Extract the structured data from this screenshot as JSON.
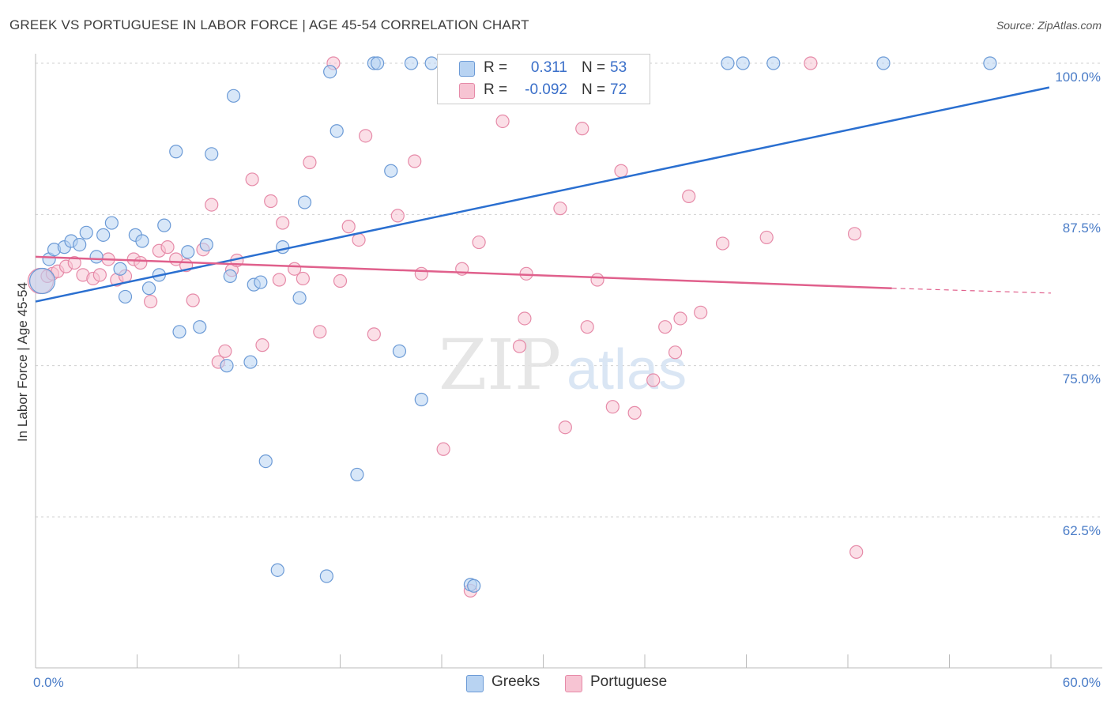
{
  "header": {
    "title": "GREEK VS PORTUGUESE IN LABOR FORCE | AGE 45-54 CORRELATION CHART",
    "source": "Source: ZipAtlas.com"
  },
  "legend": {
    "rows": [
      {
        "r_label": "R =",
        "r_value": "0.311",
        "n_label": "N =",
        "n_value": "53"
      },
      {
        "r_label": "R =",
        "r_value": "-0.092",
        "n_label": "N =",
        "n_value": "72"
      }
    ]
  },
  "bottom_legend": {
    "greeks": "Greeks",
    "portuguese": "Portuguese"
  },
  "watermark": {
    "zip": "ZIP",
    "atlas": "atlas"
  },
  "colors": {
    "greeks_fill": "#b8d3f2",
    "greeks_stroke": "#6b9ad6",
    "greeks_line": "#2a6fd0",
    "portuguese_fill": "#f7c4d3",
    "portuguese_stroke": "#e68aa8",
    "portuguese_line": "#e0608c",
    "tick_text": "#4a7cc7",
    "grid": "#d0d0d0"
  },
  "chart_data": {
    "type": "scatter",
    "title": "GREEK VS PORTUGUESE IN LABOR FORCE | AGE 45-54 CORRELATION CHART",
    "xlabel": "",
    "ylabel": "In Labor Force | Age 45-54",
    "xlim": [
      0,
      60
    ],
    "ylim": [
      50,
      101
    ],
    "x_ticks": [
      "0.0%",
      "60.0%"
    ],
    "y_ticks": [
      {
        "value": 100,
        "label": "100.0%"
      },
      {
        "value": 87.5,
        "label": "87.5%"
      },
      {
        "value": 75,
        "label": "75.0%"
      },
      {
        "value": 62.5,
        "label": "62.5%"
      }
    ],
    "grid": "horizontal dashed",
    "legend_placement": "top-center",
    "series": [
      {
        "name": "Greeks",
        "R": 0.311,
        "N": 53,
        "trend": {
          "x": [
            0,
            59.9
          ],
          "y": [
            80.3,
            98.0
          ],
          "dashed_from": null
        },
        "points": [
          [
            0.4,
            82.0
          ],
          [
            0.8,
            83.8
          ],
          [
            1.1,
            84.6
          ],
          [
            1.7,
            84.8
          ],
          [
            2.1,
            85.3
          ],
          [
            2.6,
            85.0
          ],
          [
            3.0,
            86.0
          ],
          [
            3.6,
            84.0
          ],
          [
            4.0,
            85.8
          ],
          [
            4.5,
            86.8
          ],
          [
            5.0,
            83.0
          ],
          [
            5.3,
            80.7
          ],
          [
            5.9,
            85.8
          ],
          [
            6.3,
            85.3
          ],
          [
            6.7,
            81.4
          ],
          [
            7.3,
            82.5
          ],
          [
            7.6,
            86.6
          ],
          [
            8.3,
            92.7
          ],
          [
            8.5,
            77.8
          ],
          [
            9.0,
            84.4
          ],
          [
            9.7,
            78.2
          ],
          [
            10.1,
            85.0
          ],
          [
            10.4,
            92.5
          ],
          [
            11.3,
            75.0
          ],
          [
            11.5,
            82.4
          ],
          [
            11.7,
            97.3
          ],
          [
            12.7,
            75.3
          ],
          [
            12.9,
            81.7
          ],
          [
            13.3,
            81.9
          ],
          [
            13.6,
            67.1
          ],
          [
            14.3,
            58.1
          ],
          [
            14.6,
            84.8
          ],
          [
            15.6,
            80.6
          ],
          [
            15.9,
            88.5
          ],
          [
            17.2,
            57.6
          ],
          [
            17.4,
            99.3
          ],
          [
            17.8,
            94.4
          ],
          [
            19.0,
            66.0
          ],
          [
            20.0,
            100.0
          ],
          [
            20.2,
            100.0
          ],
          [
            21.0,
            91.1
          ],
          [
            21.5,
            76.2
          ],
          [
            22.2,
            100.0
          ],
          [
            22.8,
            72.2
          ],
          [
            23.4,
            100.0
          ],
          [
            25.7,
            56.9
          ],
          [
            25.9,
            56.8
          ],
          [
            28.6,
            100.0
          ],
          [
            40.9,
            100.0
          ],
          [
            41.8,
            100.0
          ],
          [
            43.6,
            100.0
          ],
          [
            50.1,
            100.0
          ],
          [
            56.4,
            100.0
          ]
        ]
      },
      {
        "name": "Portuguese",
        "R": -0.092,
        "N": 72,
        "trend": {
          "x": [
            0,
            50.6
          ],
          "y": [
            84.0,
            81.4
          ],
          "dashed_to": 60.0,
          "dashed_y": 81.0
        },
        "points": [
          [
            0.3,
            82.0
          ],
          [
            0.7,
            82.4
          ],
          [
            1.0,
            82.6
          ],
          [
            1.3,
            82.8
          ],
          [
            1.8,
            83.2
          ],
          [
            2.3,
            83.5
          ],
          [
            2.8,
            82.5
          ],
          [
            3.4,
            82.2
          ],
          [
            3.8,
            82.5
          ],
          [
            4.3,
            83.8
          ],
          [
            4.8,
            82.1
          ],
          [
            5.3,
            82.4
          ],
          [
            5.8,
            83.8
          ],
          [
            6.2,
            83.5
          ],
          [
            6.8,
            80.3
          ],
          [
            7.3,
            84.5
          ],
          [
            7.8,
            84.8
          ],
          [
            8.3,
            83.8
          ],
          [
            8.9,
            83.3
          ],
          [
            9.3,
            80.4
          ],
          [
            9.9,
            84.6
          ],
          [
            10.4,
            88.3
          ],
          [
            10.8,
            75.3
          ],
          [
            11.2,
            76.2
          ],
          [
            11.6,
            82.9
          ],
          [
            11.9,
            83.7
          ],
          [
            12.8,
            90.4
          ],
          [
            13.4,
            76.7
          ],
          [
            13.9,
            88.6
          ],
          [
            14.4,
            82.1
          ],
          [
            14.6,
            86.8
          ],
          [
            15.3,
            83.0
          ],
          [
            15.8,
            82.2
          ],
          [
            16.2,
            91.8
          ],
          [
            16.8,
            77.8
          ],
          [
            18.0,
            82.0
          ],
          [
            18.5,
            86.5
          ],
          [
            19.1,
            85.4
          ],
          [
            19.5,
            94.0
          ],
          [
            20.0,
            77.6
          ],
          [
            21.4,
            87.4
          ],
          [
            22.4,
            91.9
          ],
          [
            22.8,
            82.6
          ],
          [
            24.1,
            68.1
          ],
          [
            25.2,
            83.0
          ],
          [
            25.7,
            56.4
          ],
          [
            26.2,
            85.2
          ],
          [
            27.3,
            100.0
          ],
          [
            27.6,
            95.2
          ],
          [
            28.6,
            76.6
          ],
          [
            28.9,
            78.9
          ],
          [
            29.0,
            82.6
          ],
          [
            31.0,
            88.0
          ],
          [
            31.3,
            69.9
          ],
          [
            32.3,
            94.6
          ],
          [
            32.6,
            78.2
          ],
          [
            33.2,
            82.1
          ],
          [
            34.1,
            71.6
          ],
          [
            34.6,
            91.1
          ],
          [
            35.4,
            71.1
          ],
          [
            36.5,
            73.8
          ],
          [
            37.2,
            78.2
          ],
          [
            37.8,
            76.1
          ],
          [
            38.1,
            78.9
          ],
          [
            38.6,
            89.0
          ],
          [
            39.3,
            79.4
          ],
          [
            40.6,
            85.1
          ],
          [
            43.2,
            85.6
          ],
          [
            45.8,
            100.0
          ],
          [
            48.4,
            85.9
          ],
          [
            48.5,
            59.6
          ],
          [
            17.6,
            100.0
          ]
        ]
      }
    ]
  }
}
